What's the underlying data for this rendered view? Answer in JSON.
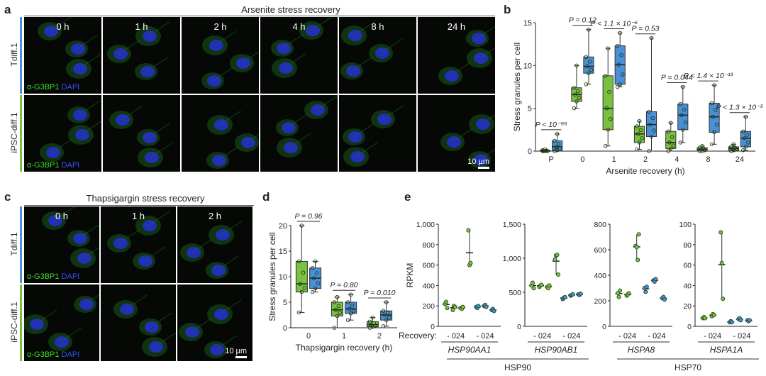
{
  "panels": {
    "a": {
      "label": "a",
      "title": "Arsenite stress recovery",
      "timepoints": [
        "0 h",
        "1 h",
        "2 h",
        "4 h",
        "8 h",
        "24 h"
      ],
      "rows": [
        "Tdiff.1",
        "iPSC-diff.1"
      ],
      "stain_green": "α-G3BP1",
      "stain_blue": "DAPI",
      "scale": "10 µm"
    },
    "c": {
      "label": "c",
      "title": "Thapsigargin stress recovery",
      "timepoints": [
        "0 h",
        "1 h",
        "2 h"
      ],
      "rows": [
        "Tdiff.1",
        "iPSC-diff.1"
      ],
      "stain_green": "α-G3BP1",
      "stain_blue": "DAPI",
      "scale": "10 µm"
    },
    "b": {
      "label": "b"
    },
    "d": {
      "label": "d"
    },
    "e": {
      "label": "e",
      "recovery_label": "Recovery:",
      "group_hsp90": "HSP90",
      "group_hsp70": "HSP70",
      "tick_pattern": "- 024"
    }
  },
  "colors": {
    "green": "#7ac143",
    "blue": "#4a90d9",
    "tdiff_bar": "#4a90d9",
    "ipsc_bar": "#7ac143"
  },
  "chart_data": [
    {
      "type": "box",
      "id": "b",
      "ylabel": "Stress granules per cell",
      "xlabel": "Arsenite recovery (h)",
      "categories": [
        "P",
        "0",
        "1",
        "2",
        "4",
        "8",
        "24"
      ],
      "ylim": [
        0,
        15
      ],
      "yticks": [
        0,
        5,
        10,
        15
      ],
      "series": [
        {
          "color": "#7ac143",
          "boxes": [
            {
              "min": 0,
              "q1": 0,
              "med": 0,
              "q3": 0.1,
              "max": 0.2
            },
            {
              "min": 5,
              "q1": 5.8,
              "med": 6.6,
              "q3": 7.4,
              "max": 10
            },
            {
              "min": 0.6,
              "q1": 2.5,
              "med": 5,
              "q3": 8.8,
              "max": 12
            },
            {
              "min": 0.2,
              "q1": 1,
              "med": 2,
              "q3": 2.9,
              "max": 3.5
            },
            {
              "min": 0,
              "q1": 0.3,
              "med": 1,
              "q3": 2.3,
              "max": 3.3
            },
            {
              "min": 0,
              "q1": 0,
              "med": 0.2,
              "q3": 0.4,
              "max": 0.6
            },
            {
              "min": 0,
              "q1": 0.1,
              "med": 0.3,
              "q3": 0.5,
              "max": 0.8
            }
          ]
        },
        {
          "color": "#4a90d9",
          "boxes": [
            {
              "min": 0,
              "q1": 0.1,
              "med": 0.5,
              "q3": 1.2,
              "max": 2
            },
            {
              "min": 7.8,
              "q1": 9.1,
              "med": 9.9,
              "q3": 11,
              "max": 14.2
            },
            {
              "min": 7.5,
              "q1": 7.8,
              "med": 10.1,
              "q3": 12.3,
              "max": 13.8
            },
            {
              "min": 0,
              "q1": 1.7,
              "med": 3.1,
              "q3": 4.6,
              "max": 13.2
            },
            {
              "min": 1,
              "q1": 2.5,
              "med": 4.2,
              "q3": 5.5,
              "max": 7.5
            },
            {
              "min": 0.8,
              "q1": 2.2,
              "med": 4,
              "q3": 5.6,
              "max": 7.7
            },
            {
              "min": 0.1,
              "q1": 0.5,
              "med": 1.5,
              "q3": 2.3,
              "max": 4
            }
          ]
        }
      ],
      "annotations": [
        {
          "text": "P < 10⁻⁹⁶",
          "cat": 0
        },
        {
          "text": "P = 0.12",
          "cat": 1
        },
        {
          "text": "P < 1.1 × 10⁻⁶",
          "cat": 2
        },
        {
          "text": "P = 0.53",
          "cat": 3
        },
        {
          "text": "P = 0.044",
          "cat": 4
        },
        {
          "text": "P < 1.4 × 10⁻¹³",
          "cat": 5
        },
        {
          "text": "P < 1.3 × 10⁻⁵",
          "cat": 6
        }
      ]
    },
    {
      "type": "box",
      "id": "d",
      "ylabel": "Stress granules per cell",
      "xlabel": "Thapsigargin recovery (h)",
      "categories": [
        "0",
        "1",
        "2"
      ],
      "ylim": [
        0,
        20
      ],
      "yticks": [
        0,
        5,
        10,
        15,
        20
      ],
      "series": [
        {
          "color": "#7ac143",
          "boxes": [
            {
              "min": 3,
              "q1": 7,
              "med": 8.6,
              "q3": 13,
              "max": 20
            },
            {
              "min": 0,
              "q1": 2.3,
              "med": 3.5,
              "q3": 5,
              "max": 6
            },
            {
              "min": 0,
              "q1": 0.2,
              "med": 0.6,
              "q3": 1.2,
              "max": 2
            }
          ]
        },
        {
          "color": "#4a90d9",
          "boxes": [
            {
              "min": 7,
              "q1": 7.7,
              "med": 9.7,
              "q3": 11.7,
              "max": 13
            },
            {
              "min": 1.5,
              "q1": 2.8,
              "med": 3.7,
              "q3": 5,
              "max": 6.5
            },
            {
              "min": 0.3,
              "q1": 1.5,
              "med": 2.5,
              "q3": 3.3,
              "max": 5
            }
          ]
        }
      ],
      "annotations": [
        {
          "text": "P = 0.96",
          "cat": 0
        },
        {
          "text": "P = 0.80",
          "cat": 1
        },
        {
          "text": "P = 0.010",
          "cat": 2
        }
      ]
    },
    {
      "type": "dot",
      "id": "e",
      "ylabel": "RPKM",
      "genes": [
        {
          "name": "HSP90AA1",
          "ylim": [
            0,
            1000
          ],
          "yticks": [
            "0",
            "200",
            "400",
            "600",
            "800",
            "1,000"
          ],
          "tickvals": [
            0,
            200,
            400,
            600,
            800,
            1000
          ],
          "green": [
            [
              220,
              240,
              180
            ],
            [
              160,
              200,
              190
            ],
            [
              180,
              170,
              190
            ],
            [
              940,
              600,
              620
            ]
          ],
          "blue": [
            [
              190,
              180,
              200
            ],
            [
              200,
              210,
              190
            ],
            [
              160,
              170,
              150
            ]
          ]
        },
        {
          "name": "HSP90AB1",
          "ylim": [
            0,
            1500
          ],
          "yticks": [
            "0",
            "500",
            "1,000",
            "1,500"
          ],
          "tickvals": [
            0,
            500,
            1000,
            1500
          ],
          "green": [
            [
              600,
              640,
              560
            ],
            [
              580,
              600,
              610
            ],
            [
              580,
              560,
              600
            ],
            [
              980,
              1040,
              1050,
              760
            ]
          ],
          "blue": [
            [
              400,
              420,
              430
            ],
            [
              450,
              460,
              470
            ],
            [
              470,
              460,
              480
            ]
          ]
        },
        {
          "name": "HSPA8",
          "ylim": [
            0,
            800
          ],
          "yticks": [
            "0",
            "200",
            "400",
            "600",
            "800"
          ],
          "tickvals": [
            0,
            200,
            400,
            600,
            800
          ],
          "green": [
            [
              260,
              230,
              280
            ],
            [
              240,
              250,
              260
            ],
            [
              630,
              620,
              520,
              720
            ]
          ],
          "blue": [
            [
              300,
              270,
              310
            ],
            [
              360,
              350,
              370
            ],
            [
              220,
              230,
              210
            ]
          ]
        },
        {
          "name": "HSPA1A",
          "ylim": [
            0,
            100
          ],
          "yticks": [
            "0",
            "20",
            "40",
            "60",
            "80",
            "100"
          ],
          "tickvals": [
            0,
            20,
            40,
            60,
            80,
            100
          ],
          "green": [
            [
              8,
              9,
              8
            ],
            [
              10,
              12,
              11
            ],
            [
              92,
              62,
              27
            ]
          ],
          "blue": [
            [
              4,
              5,
              4
            ],
            [
              7,
              8,
              6
            ],
            [
              6,
              5,
              6
            ]
          ]
        }
      ]
    }
  ]
}
